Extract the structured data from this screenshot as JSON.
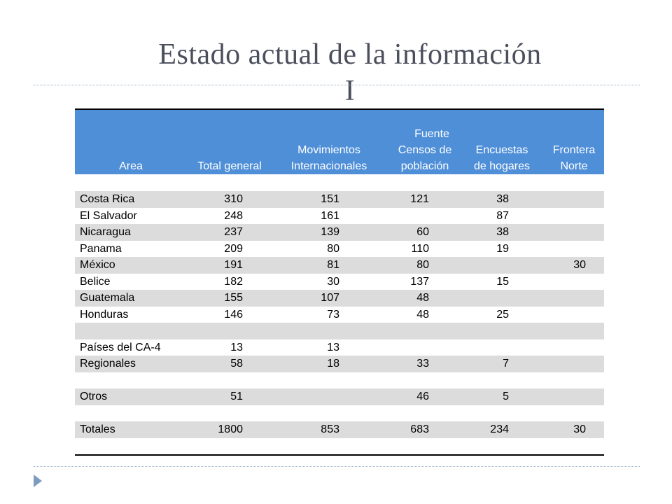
{
  "slide": {
    "title_line1": "Estado actual de la información",
    "title_line2": "I"
  },
  "table": {
    "header": {
      "area": "Area",
      "total": "Total general",
      "fuente": "Fuente",
      "mov_line1": "Movimientos",
      "mov_line2": "Internacionales",
      "censos_line1": "Censos de",
      "censos_line2": "población",
      "enc_line1": "Encuestas",
      "enc_line2": "de hogares",
      "front_line1": "Frontera",
      "front_line2": "Norte"
    },
    "rows": [
      {
        "area": "Costa Rica",
        "total": "310",
        "mov": "151",
        "censos": "121",
        "enc": "38",
        "front": ""
      },
      {
        "area": "El Salvador",
        "total": "248",
        "mov": "161",
        "censos": "",
        "enc": "87",
        "front": ""
      },
      {
        "area": "Nicaragua",
        "total": "237",
        "mov": "139",
        "censos": "60",
        "enc": "38",
        "front": ""
      },
      {
        "area": "Panama",
        "total": "209",
        "mov": "80",
        "censos": "110",
        "enc": "19",
        "front": ""
      },
      {
        "area": "México",
        "total": "191",
        "mov": "81",
        "censos": "80",
        "enc": "",
        "front": "30"
      },
      {
        "area": "Belice",
        "total": "182",
        "mov": "30",
        "censos": "137",
        "enc": "15",
        "front": ""
      },
      {
        "area": "Guatemala",
        "total": "155",
        "mov": "107",
        "censos": "48",
        "enc": "",
        "front": ""
      },
      {
        "area": "Honduras",
        "total": "146",
        "mov": "73",
        "censos": "48",
        "enc": "25",
        "front": ""
      },
      {
        "area": "",
        "total": "",
        "mov": "",
        "censos": "",
        "enc": "",
        "front": ""
      },
      {
        "area": "Países del CA-4",
        "total": "13",
        "mov": "13",
        "censos": "",
        "enc": "",
        "front": ""
      },
      {
        "area": "Regionales",
        "total": "58",
        "mov": "18",
        "censos": "33",
        "enc": "7",
        "front": ""
      },
      {
        "area": "",
        "total": "",
        "mov": "",
        "censos": "",
        "enc": "",
        "front": ""
      },
      {
        "area": "Otros",
        "total": "51",
        "mov": "",
        "censos": "46",
        "enc": "5",
        "front": ""
      },
      {
        "area": "",
        "total": "",
        "mov": "",
        "censos": "",
        "enc": "",
        "front": ""
      },
      {
        "area": "Totales",
        "total": "1800",
        "mov": "853",
        "censos": "683",
        "enc": "234",
        "front": "30"
      }
    ]
  }
}
